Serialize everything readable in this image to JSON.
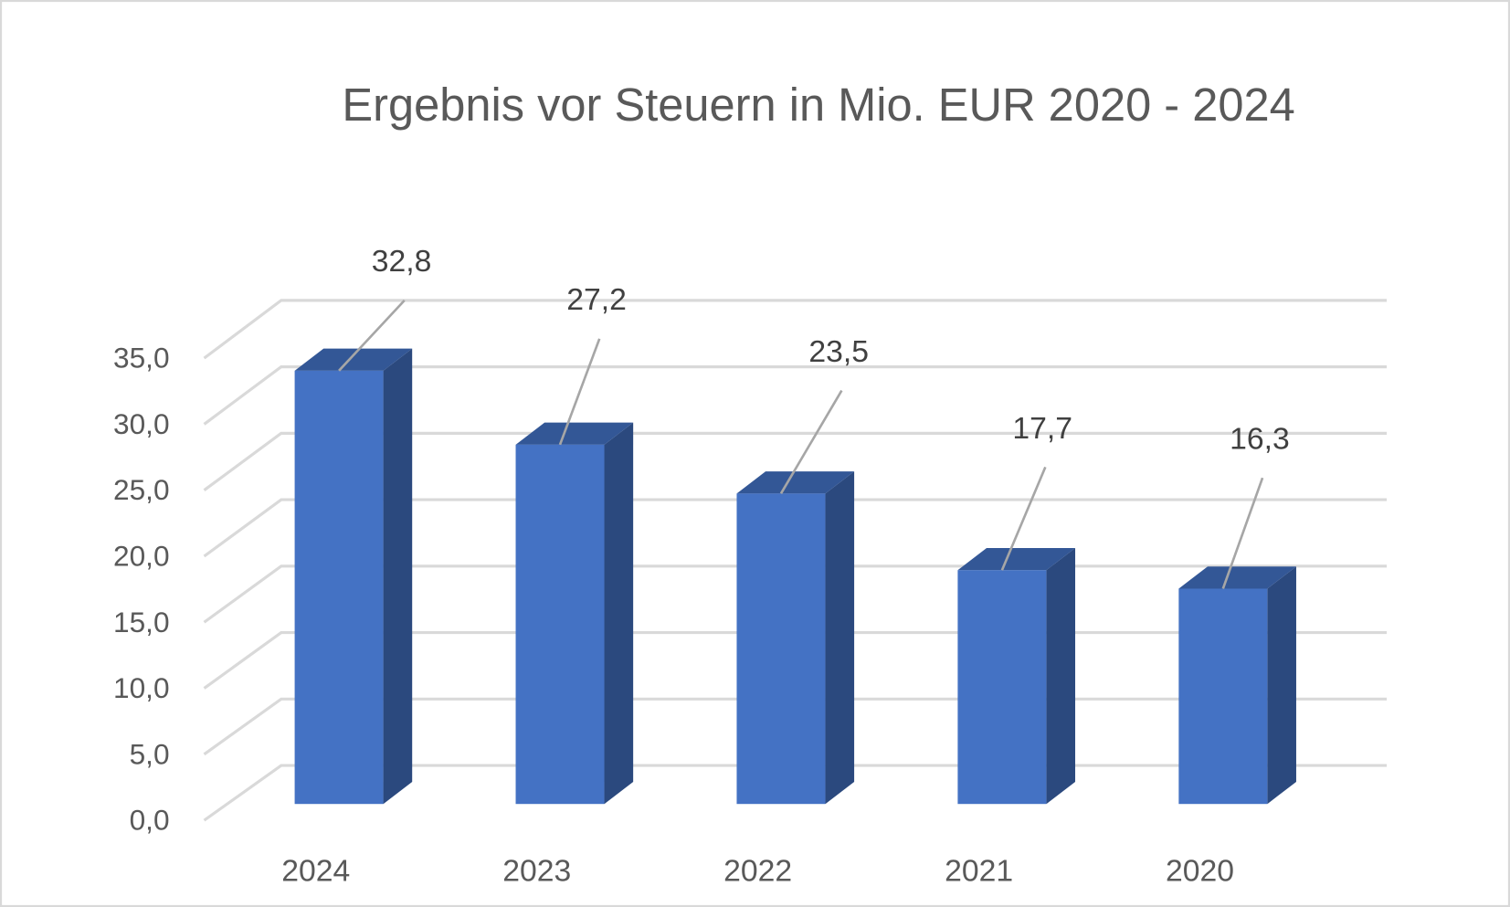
{
  "chart_data": {
    "type": "bar",
    "style": "3d-column",
    "title": "Ergebnis vor Steuern in Mio. EUR 2020 - 2024",
    "xlabel": "",
    "ylabel": "",
    "categories": [
      "2024",
      "2023",
      "2022",
      "2021",
      "2020"
    ],
    "values": [
      32.8,
      27.2,
      23.5,
      17.7,
      16.3
    ],
    "data_labels": [
      "32,8",
      "27,2",
      "23,5",
      "17,7",
      "16,3"
    ],
    "ylim": [
      0,
      35
    ],
    "yticks": [
      "0,0",
      "5,0",
      "10,0",
      "15,0",
      "20,0",
      "25,0",
      "30,0",
      "35,0"
    ],
    "grid": true,
    "legend": "none",
    "colors": {
      "front": "#4472C4",
      "top": "#335796",
      "side": "#2B497E",
      "grid": "#D9D9D9",
      "leader": "#A6A6A6",
      "text": "#595959"
    }
  }
}
